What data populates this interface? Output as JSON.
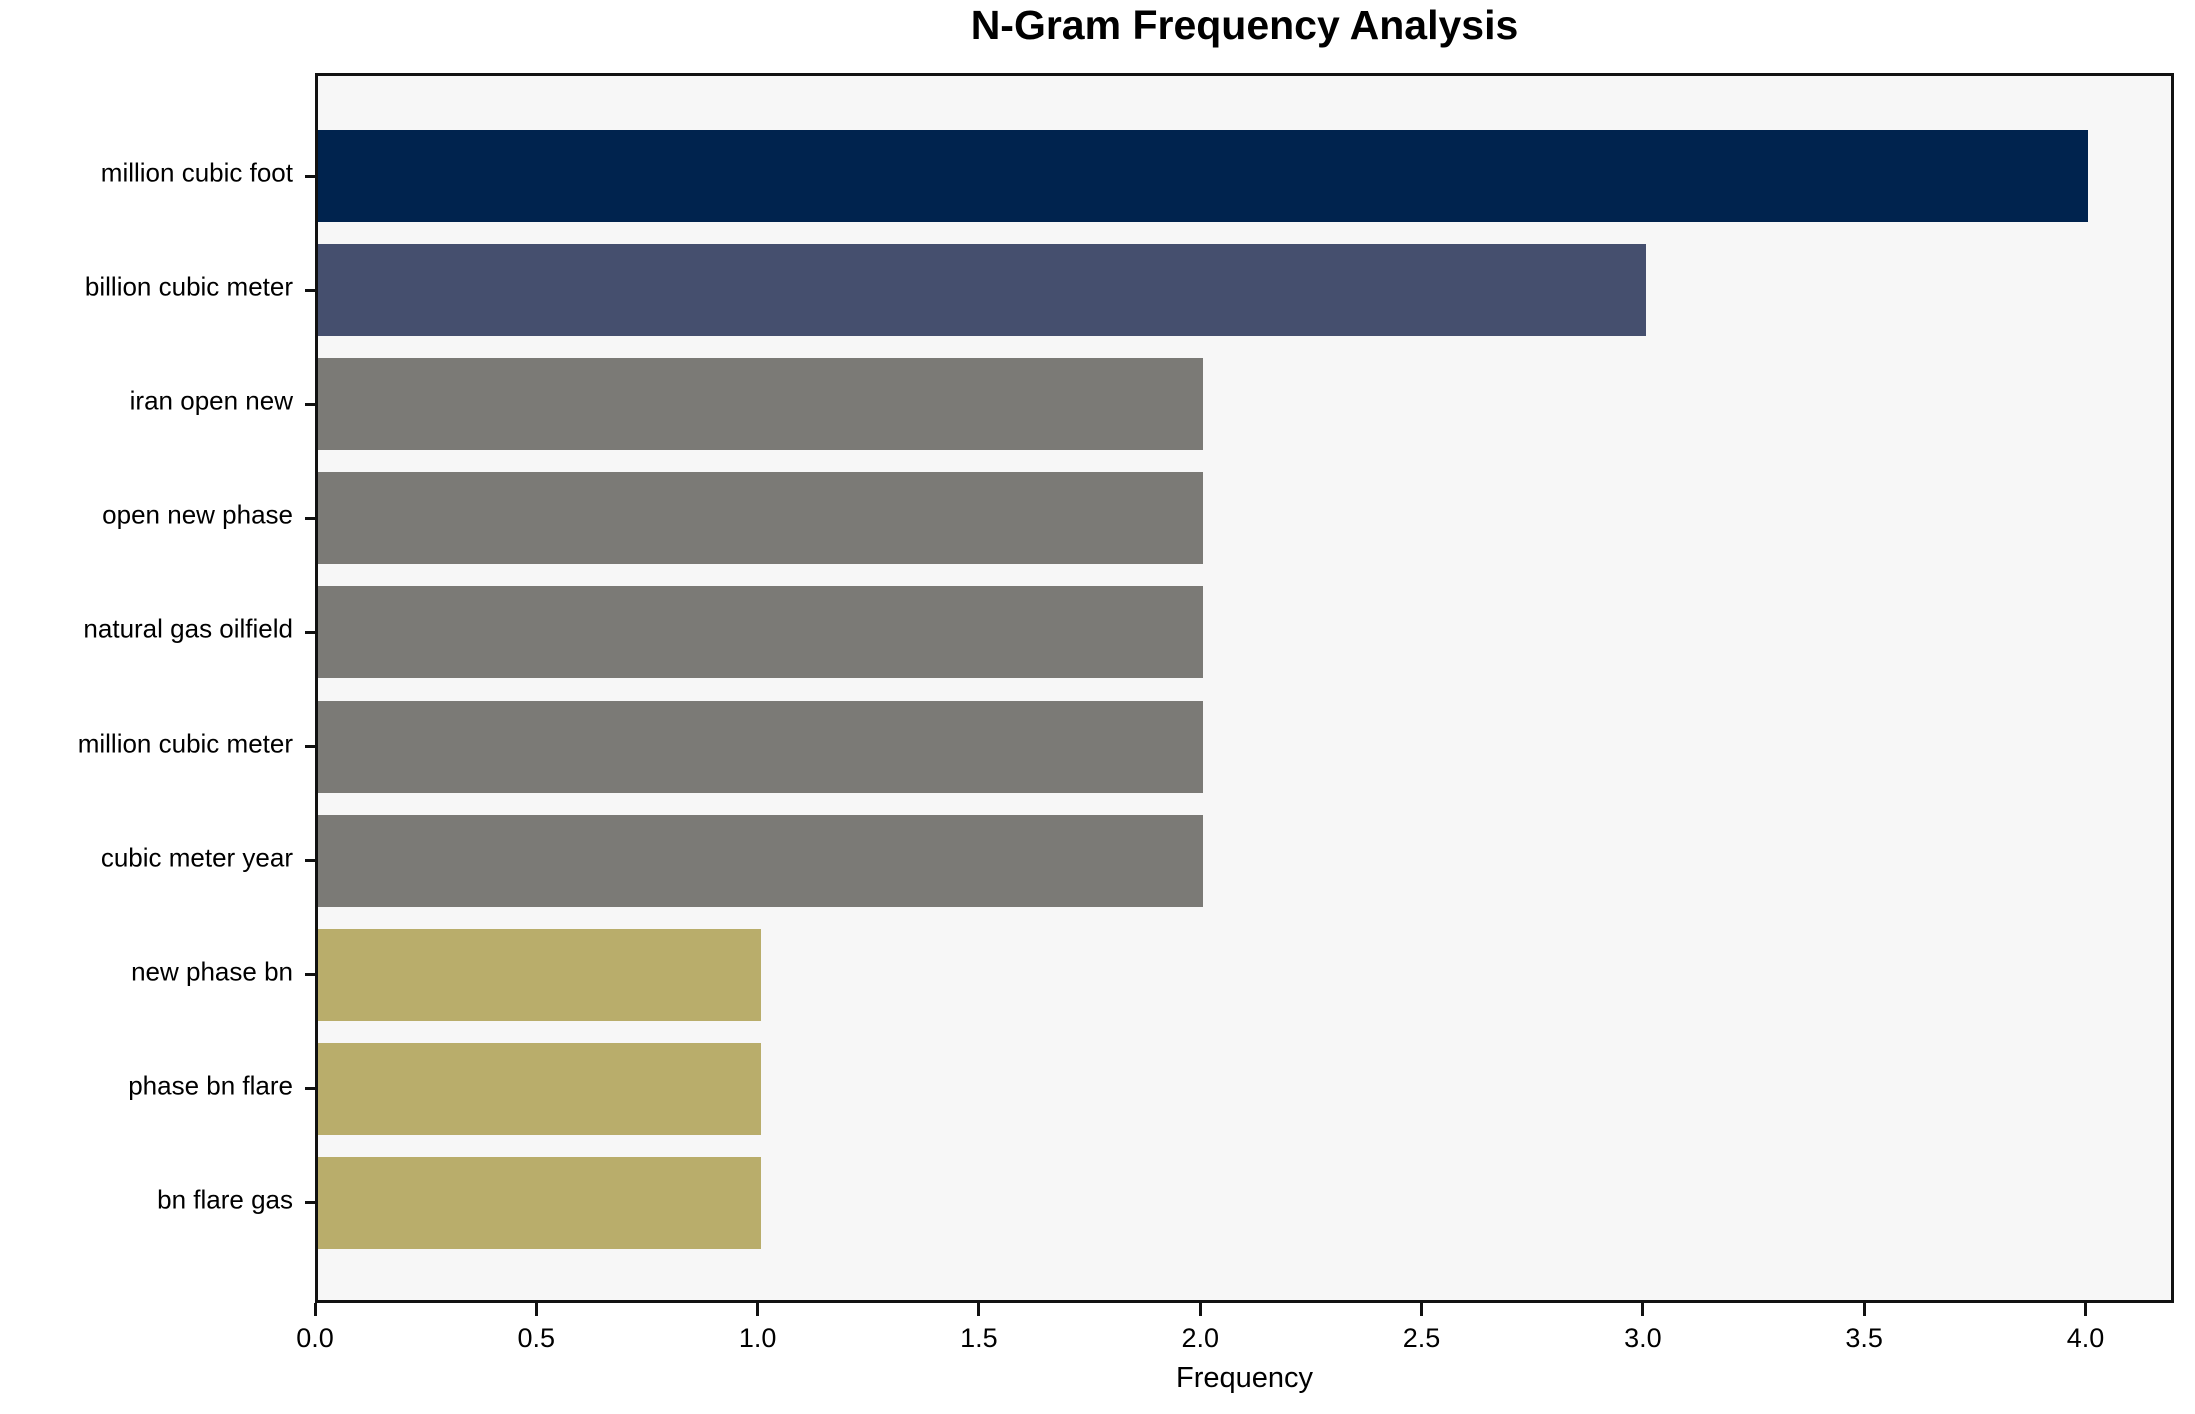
{
  "chart_data": {
    "type": "bar",
    "orientation": "horizontal",
    "title": "N-Gram Frequency Analysis",
    "xlabel": "Frequency",
    "ylabel": "",
    "categories": [
      "million cubic foot",
      "billion cubic meter",
      "iran open new",
      "open new phase",
      "natural gas oilfield",
      "million cubic meter",
      "cubic meter year",
      "new phase bn",
      "phase bn flare",
      "bn flare gas"
    ],
    "values": [
      4,
      3,
      2,
      2,
      2,
      2,
      2,
      1,
      1,
      1
    ],
    "bar_colors": [
      "#00234e",
      "#454f6e",
      "#7b7a76",
      "#7b7a76",
      "#7b7a76",
      "#7b7a76",
      "#7b7a76",
      "#b9ad6b",
      "#b9ad6b",
      "#b9ad6b"
    ],
    "xlim": [
      0,
      4.2
    ],
    "xticks": [
      "0.0",
      "0.5",
      "1.0",
      "1.5",
      "2.0",
      "2.5",
      "3.0",
      "3.5",
      "4.0"
    ],
    "xtick_values": [
      0,
      0.5,
      1,
      1.5,
      2,
      2.5,
      3,
      3.5,
      4
    ],
    "grid": false,
    "legend": false,
    "plot_background": "#f7f7f7",
    "figure_background": "#ffffff",
    "axis_color": "#111111",
    "text_color": "#000000"
  }
}
